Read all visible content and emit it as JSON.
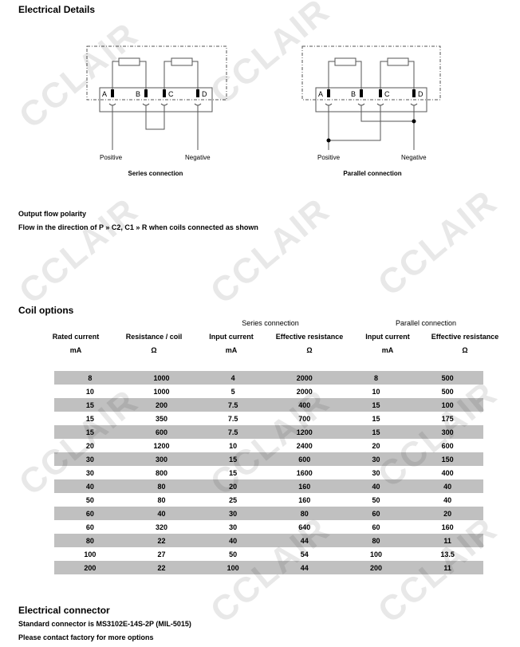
{
  "watermark": "CCLAIR",
  "electrical_details": {
    "title": "Electrical Details",
    "terminals": [
      "A",
      "B",
      "C",
      "D"
    ],
    "series": {
      "positive": "Positive",
      "negative": "Negative",
      "caption": "Series connection"
    },
    "parallel": {
      "positive": "Positive",
      "negative": "Negative",
      "caption": "Parallel connection"
    }
  },
  "output_flow": {
    "title": "Output flow polarity",
    "text": "Flow in the direction of P » C2, C1 » R when coils connected as shown"
  },
  "coil_options": {
    "title": "Coil options",
    "group_headers": {
      "series": "Series connection",
      "parallel": "Parallel connection"
    },
    "columns": [
      {
        "label": "Rated current",
        "unit": "mA"
      },
      {
        "label": "Resistance / coil",
        "unit": "Ω"
      },
      {
        "label": "Input current",
        "unit": "mA"
      },
      {
        "label": "Effective resistance",
        "unit": "Ω"
      },
      {
        "label": "Input current",
        "unit": "mA"
      },
      {
        "label": "Effective resistance",
        "unit": "Ω"
      }
    ],
    "rows": [
      [
        "8",
        "1000",
        "4",
        "2000",
        "8",
        "500"
      ],
      [
        "10",
        "1000",
        "5",
        "2000",
        "10",
        "500"
      ],
      [
        "15",
        "200",
        "7.5",
        "400",
        "15",
        "100"
      ],
      [
        "15",
        "350",
        "7.5",
        "700",
        "15",
        "175"
      ],
      [
        "15",
        "600",
        "7.5",
        "1200",
        "15",
        "300"
      ],
      [
        "20",
        "1200",
        "10",
        "2400",
        "20",
        "600"
      ],
      [
        "30",
        "300",
        "15",
        "600",
        "30",
        "150"
      ],
      [
        "30",
        "800",
        "15",
        "1600",
        "30",
        "400"
      ],
      [
        "40",
        "80",
        "20",
        "160",
        "40",
        "40"
      ],
      [
        "50",
        "80",
        "25",
        "160",
        "50",
        "40"
      ],
      [
        "60",
        "40",
        "30",
        "80",
        "60",
        "20"
      ],
      [
        "60",
        "320",
        "30",
        "640",
        "60",
        "160"
      ],
      [
        "80",
        "22",
        "40",
        "44",
        "80",
        "11"
      ],
      [
        "100",
        "27",
        "50",
        "54",
        "100",
        "13.5"
      ],
      [
        "200",
        "22",
        "100",
        "44",
        "200",
        "11"
      ]
    ]
  },
  "connector": {
    "title": "Electrical connector",
    "line1": "Standard connector is MS3102E-14S-2P (MIL-5015)",
    "line2": "Please contact factory for more options"
  }
}
